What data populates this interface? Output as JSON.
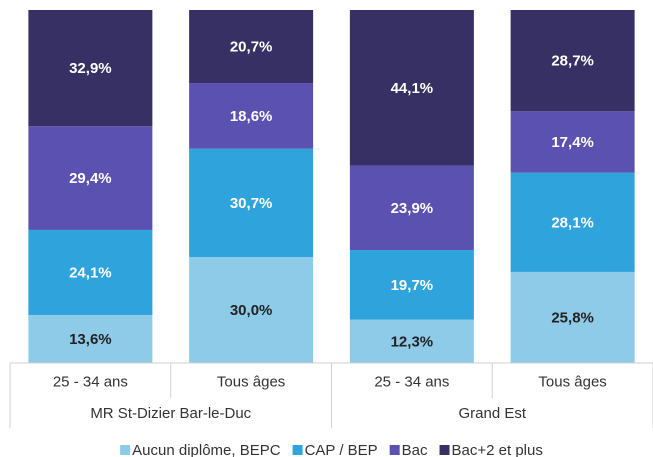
{
  "chart_data": {
    "type": "stacked_bar",
    "categories": [
      "25 - 34 ans",
      "Tous âges",
      "25 - 34 ans",
      "Tous âges"
    ],
    "group_categories": [
      "MR St-Dizier Bar-le-Duc",
      "Grand Est"
    ],
    "ylim": [
      0,
      100
    ],
    "series": [
      {
        "name": "Aucun diplôme, BEPC",
        "color": "#8dcbe9",
        "values": [
          13.6,
          30.0,
          12.3,
          25.8
        ],
        "value_labels": [
          "13,6%",
          "30,0%",
          "12,3%",
          "25,8%"
        ]
      },
      {
        "name": "CAP / BEP",
        "color": "#2fa3dc",
        "values": [
          24.1,
          30.7,
          19.7,
          28.1
        ],
        "value_labels": [
          "24,1%",
          "30,7%",
          "19,7%",
          "28,1%"
        ]
      },
      {
        "name": "Bac",
        "color": "#5b51b0",
        "values": [
          29.4,
          18.6,
          23.9,
          17.4
        ],
        "value_labels": [
          "29,4%",
          "18,6%",
          "23,9%",
          "17,4%"
        ]
      },
      {
        "name": "Bac+2 et plus",
        "color": "#363064",
        "values": [
          32.9,
          20.7,
          44.1,
          28.7
        ],
        "value_labels": [
          "32,9%",
          "20,7%",
          "44,1%",
          "28,7%"
        ]
      }
    ],
    "legend": "bottom"
  }
}
